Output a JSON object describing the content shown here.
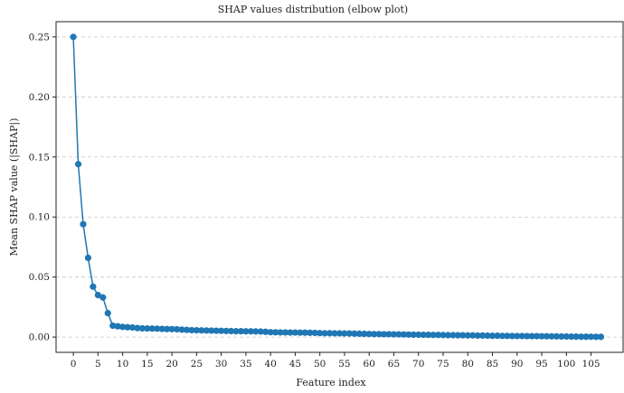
{
  "chart_data": {
    "type": "line",
    "title": "SHAP values distribution (elbow plot)",
    "xlabel": "Feature index",
    "ylabel": "Mean SHAP value (|SHAP|)",
    "xlim": [
      -3.5,
      111.5
    ],
    "ylim": [
      -0.0127,
      0.2627
    ],
    "xticks": [
      0,
      5,
      10,
      15,
      20,
      25,
      30,
      35,
      40,
      45,
      50,
      55,
      60,
      65,
      70,
      75,
      80,
      85,
      90,
      95,
      100,
      105
    ],
    "yticks": [
      0.0,
      0.05,
      0.1,
      0.15,
      0.2,
      0.25
    ],
    "ytick_labels": [
      "0.00",
      "0.05",
      "0.10",
      "0.15",
      "0.20",
      "0.25"
    ],
    "grid": "y",
    "color": "#1f77b4",
    "x": [
      0,
      1,
      2,
      3,
      4,
      5,
      6,
      7,
      8,
      9,
      10,
      11,
      12,
      13,
      14,
      15,
      16,
      17,
      18,
      19,
      20,
      21,
      22,
      23,
      24,
      25,
      26,
      27,
      28,
      29,
      30,
      31,
      32,
      33,
      34,
      35,
      36,
      37,
      38,
      39,
      40,
      41,
      42,
      43,
      44,
      45,
      46,
      47,
      48,
      49,
      50,
      51,
      52,
      53,
      54,
      55,
      56,
      57,
      58,
      59,
      60,
      61,
      62,
      63,
      64,
      65,
      66,
      67,
      68,
      69,
      70,
      71,
      72,
      73,
      74,
      75,
      76,
      77,
      78,
      79,
      80,
      81,
      82,
      83,
      84,
      85,
      86,
      87,
      88,
      89,
      90,
      91,
      92,
      93,
      94,
      95,
      96,
      97,
      98,
      99,
      100,
      101,
      102,
      103,
      104,
      105,
      106,
      107
    ],
    "y": [
      0.25,
      0.144,
      0.094,
      0.066,
      0.042,
      0.035,
      0.033,
      0.02,
      0.0095,
      0.009,
      0.0085,
      0.0082,
      0.008,
      0.0075,
      0.0073,
      0.0072,
      0.0071,
      0.007,
      0.0068,
      0.0067,
      0.0066,
      0.0065,
      0.0062,
      0.006,
      0.0058,
      0.0057,
      0.0056,
      0.0055,
      0.0054,
      0.0053,
      0.0052,
      0.0051,
      0.005,
      0.0049,
      0.0049,
      0.0048,
      0.0048,
      0.0047,
      0.0046,
      0.0044,
      0.0041,
      0.004,
      0.0039,
      0.0039,
      0.0038,
      0.0038,
      0.0037,
      0.0037,
      0.0036,
      0.0035,
      0.0033,
      0.0032,
      0.0032,
      0.0031,
      0.0031,
      0.003,
      0.003,
      0.0029,
      0.0028,
      0.0027,
      0.0026,
      0.0025,
      0.0025,
      0.0024,
      0.0024,
      0.0023,
      0.0023,
      0.0022,
      0.0021,
      0.002,
      0.002,
      0.0019,
      0.0019,
      0.0018,
      0.0018,
      0.0017,
      0.0016,
      0.0016,
      0.0015,
      0.0015,
      0.0014,
      0.0014,
      0.0013,
      0.0013,
      0.0012,
      0.0011,
      0.0011,
      0.001,
      0.001,
      0.0009,
      0.0009,
      0.0009,
      0.0008,
      0.0008,
      0.0008,
      0.0007,
      0.0007,
      0.0006,
      0.0006,
      0.0005,
      0.0005,
      0.0004,
      0.0004,
      0.0003,
      0.0003,
      0.0003,
      0.0002,
      0.0002
    ]
  }
}
